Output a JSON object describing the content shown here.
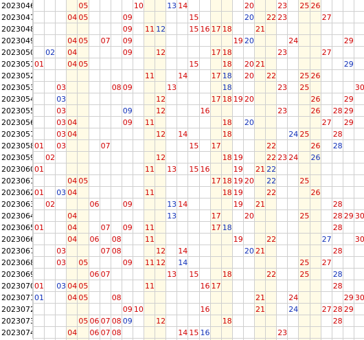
{
  "colors": {
    "red": "#d00000",
    "blue": "#1030b8",
    "band": "#fffbe6",
    "grid": "#cfcfcf"
  },
  "rows": [
    {
      "issue": "2023046",
      "nums": [
        [
          5,
          "r"
        ],
        [
          10,
          "r"
        ],
        [
          13,
          "b"
        ],
        [
          14,
          "r"
        ],
        [
          20,
          "r"
        ],
        [
          23,
          "r"
        ],
        [
          25,
          "r"
        ],
        [
          26,
          "r"
        ]
      ]
    },
    {
      "issue": "2023047",
      "nums": [
        [
          4,
          "r"
        ],
        [
          5,
          "r"
        ],
        [
          9,
          "r"
        ],
        [
          15,
          "r"
        ],
        [
          20,
          "b"
        ],
        [
          22,
          "r"
        ],
        [
          23,
          "r"
        ],
        [
          27,
          "r"
        ]
      ]
    },
    {
      "issue": "2023048",
      "nums": [
        [
          9,
          "r"
        ],
        [
          11,
          "r"
        ],
        [
          12,
          "b"
        ],
        [
          15,
          "r"
        ],
        [
          16,
          "r"
        ],
        [
          17,
          "r"
        ],
        [
          18,
          "r"
        ],
        [
          21,
          "r"
        ]
      ]
    },
    {
      "issue": "2023049",
      "nums": [
        [
          4,
          "r"
        ],
        [
          5,
          "r"
        ],
        [
          7,
          "r"
        ],
        [
          9,
          "r"
        ],
        [
          19,
          "r"
        ],
        [
          20,
          "b"
        ],
        [
          24,
          "r"
        ],
        [
          29,
          "r"
        ]
      ]
    },
    {
      "issue": "2023050",
      "nums": [
        [
          2,
          "b"
        ],
        [
          4,
          "r"
        ],
        [
          9,
          "r"
        ],
        [
          12,
          "r"
        ],
        [
          17,
          "r"
        ],
        [
          18,
          "r"
        ],
        [
          23,
          "r"
        ],
        [
          27,
          "r"
        ]
      ]
    },
    {
      "issue": "2023051",
      "nums": [
        [
          1,
          "r"
        ],
        [
          4,
          "r"
        ],
        [
          5,
          "r"
        ],
        [
          15,
          "r"
        ],
        [
          18,
          "r"
        ],
        [
          20,
          "r"
        ],
        [
          21,
          "r"
        ],
        [
          29,
          "b"
        ]
      ]
    },
    {
      "issue": "2023052",
      "nums": [
        [
          11,
          "r"
        ],
        [
          14,
          "r"
        ],
        [
          17,
          "r"
        ],
        [
          18,
          "b"
        ],
        [
          20,
          "r"
        ],
        [
          22,
          "r"
        ],
        [
          25,
          "r"
        ],
        [
          26,
          "r"
        ]
      ]
    },
    {
      "issue": "2023053",
      "nums": [
        [
          3,
          "r"
        ],
        [
          8,
          "r"
        ],
        [
          9,
          "r"
        ],
        [
          13,
          "r"
        ],
        [
          18,
          "b"
        ],
        [
          23,
          "r"
        ],
        [
          25,
          "r"
        ],
        [
          30,
          "r"
        ]
      ]
    },
    {
      "issue": "2023054",
      "nums": [
        [
          3,
          "b"
        ],
        [
          12,
          "r"
        ],
        [
          17,
          "r"
        ],
        [
          18,
          "r"
        ],
        [
          19,
          "r"
        ],
        [
          20,
          "r"
        ],
        [
          26,
          "r"
        ],
        [
          29,
          "r"
        ]
      ]
    },
    {
      "issue": "2023055",
      "nums": [
        [
          3,
          "r"
        ],
        [
          9,
          "b"
        ],
        [
          12,
          "r"
        ],
        [
          16,
          "r"
        ],
        [
          23,
          "r"
        ],
        [
          26,
          "r"
        ],
        [
          28,
          "r"
        ],
        [
          29,
          "r"
        ]
      ]
    },
    {
      "issue": "2023056",
      "nums": [
        [
          3,
          "r"
        ],
        [
          4,
          "r"
        ],
        [
          9,
          "r"
        ],
        [
          11,
          "r"
        ],
        [
          18,
          "r"
        ],
        [
          20,
          "b"
        ],
        [
          27,
          "r"
        ],
        [
          29,
          "r"
        ]
      ]
    },
    {
      "issue": "2023057",
      "nums": [
        [
          3,
          "r"
        ],
        [
          4,
          "r"
        ],
        [
          12,
          "r"
        ],
        [
          14,
          "r"
        ],
        [
          18,
          "r"
        ],
        [
          24,
          "b"
        ],
        [
          25,
          "r"
        ],
        [
          28,
          "r"
        ]
      ]
    },
    {
      "issue": "2023058",
      "nums": [
        [
          1,
          "r"
        ],
        [
          3,
          "r"
        ],
        [
          7,
          "r"
        ],
        [
          15,
          "r"
        ],
        [
          17,
          "r"
        ],
        [
          22,
          "r"
        ],
        [
          26,
          "r"
        ],
        [
          28,
          "b"
        ]
      ]
    },
    {
      "issue": "2023059",
      "nums": [
        [
          2,
          "r"
        ],
        [
          12,
          "r"
        ],
        [
          18,
          "r"
        ],
        [
          19,
          "r"
        ],
        [
          22,
          "r"
        ],
        [
          23,
          "r"
        ],
        [
          24,
          "r"
        ],
        [
          26,
          "b"
        ]
      ]
    },
    {
      "issue": "2023060",
      "nums": [
        [
          1,
          "r"
        ],
        [
          11,
          "r"
        ],
        [
          13,
          "r"
        ],
        [
          15,
          "r"
        ],
        [
          16,
          "r"
        ],
        [
          19,
          "r"
        ],
        [
          21,
          "r"
        ],
        [
          22,
          "b"
        ]
      ]
    },
    {
      "issue": "2023061",
      "nums": [
        [
          4,
          "r"
        ],
        [
          5,
          "r"
        ],
        [
          17,
          "r"
        ],
        [
          18,
          "r"
        ],
        [
          19,
          "r"
        ],
        [
          20,
          "r"
        ],
        [
          22,
          "b"
        ],
        [
          25,
          "r"
        ]
      ]
    },
    {
      "issue": "2023062",
      "nums": [
        [
          1,
          "r"
        ],
        [
          3,
          "b"
        ],
        [
          4,
          "r"
        ],
        [
          11,
          "r"
        ],
        [
          18,
          "r"
        ],
        [
          19,
          "r"
        ],
        [
          22,
          "r"
        ],
        [
          26,
          "r"
        ]
      ]
    },
    {
      "issue": "2023063",
      "nums": [
        [
          2,
          "r"
        ],
        [
          6,
          "r"
        ],
        [
          9,
          "r"
        ],
        [
          13,
          "b"
        ],
        [
          14,
          "r"
        ],
        [
          19,
          "r"
        ],
        [
          21,
          "r"
        ],
        [
          28,
          "r"
        ]
      ]
    },
    {
      "issue": "2023064",
      "nums": [
        [
          4,
          "r"
        ],
        [
          13,
          "b"
        ],
        [
          17,
          "r"
        ],
        [
          20,
          "r"
        ],
        [
          25,
          "r"
        ],
        [
          28,
          "r"
        ],
        [
          29,
          "r"
        ],
        [
          30,
          "r"
        ]
      ]
    },
    {
      "issue": "2023065",
      "nums": [
        [
          1,
          "r"
        ],
        [
          4,
          "r"
        ],
        [
          7,
          "r"
        ],
        [
          9,
          "r"
        ],
        [
          11,
          "r"
        ],
        [
          17,
          "r"
        ],
        [
          18,
          "b"
        ],
        [
          28,
          "r"
        ]
      ]
    },
    {
      "issue": "2023066",
      "nums": [
        [
          4,
          "r"
        ],
        [
          6,
          "r"
        ],
        [
          8,
          "r"
        ],
        [
          11,
          "r"
        ],
        [
          19,
          "r"
        ],
        [
          22,
          "r"
        ],
        [
          27,
          "b"
        ],
        [
          30,
          "r"
        ]
      ]
    },
    {
      "issue": "2023067",
      "nums": [
        [
          3,
          "r"
        ],
        [
          7,
          "r"
        ],
        [
          8,
          "r"
        ],
        [
          12,
          "r"
        ],
        [
          14,
          "r"
        ],
        [
          20,
          "b"
        ],
        [
          21,
          "r"
        ],
        [
          28,
          "r"
        ]
      ]
    },
    {
      "issue": "2023068",
      "nums": [
        [
          3,
          "r"
        ],
        [
          5,
          "r"
        ],
        [
          9,
          "r"
        ],
        [
          11,
          "r"
        ],
        [
          12,
          "r"
        ],
        [
          14,
          "b"
        ],
        [
          25,
          "r"
        ],
        [
          27,
          "r"
        ]
      ]
    },
    {
      "issue": "2023069",
      "nums": [
        [
          6,
          "r"
        ],
        [
          7,
          "r"
        ],
        [
          13,
          "r"
        ],
        [
          15,
          "r"
        ],
        [
          18,
          "r"
        ],
        [
          22,
          "r"
        ],
        [
          25,
          "r"
        ],
        [
          28,
          "b"
        ]
      ]
    },
    {
      "issue": "2023070",
      "nums": [
        [
          1,
          "r"
        ],
        [
          3,
          "b"
        ],
        [
          4,
          "r"
        ],
        [
          5,
          "r"
        ],
        [
          11,
          "r"
        ],
        [
          16,
          "r"
        ],
        [
          17,
          "r"
        ],
        [
          28,
          "r"
        ]
      ]
    },
    {
      "issue": "2023071",
      "nums": [
        [
          1,
          "b"
        ],
        [
          4,
          "r"
        ],
        [
          5,
          "r"
        ],
        [
          8,
          "r"
        ],
        [
          21,
          "r"
        ],
        [
          24,
          "r"
        ],
        [
          29,
          "r"
        ],
        [
          30,
          "r"
        ]
      ]
    },
    {
      "issue": "2023072",
      "nums": [
        [
          9,
          "r"
        ],
        [
          10,
          "r"
        ],
        [
          16,
          "r"
        ],
        [
          21,
          "r"
        ],
        [
          24,
          "b"
        ],
        [
          27,
          "r"
        ],
        [
          28,
          "r"
        ],
        [
          29,
          "r"
        ]
      ]
    },
    {
      "issue": "2023073",
      "nums": [
        [
          5,
          "r"
        ],
        [
          6,
          "r"
        ],
        [
          7,
          "r"
        ],
        [
          8,
          "r"
        ],
        [
          9,
          "b"
        ],
        [
          12,
          "r"
        ],
        [
          18,
          "r"
        ],
        [
          28,
          "r"
        ]
      ]
    },
    {
      "issue": "2023074",
      "nums": [
        [
          4,
          "r"
        ],
        [
          6,
          "r"
        ],
        [
          7,
          "r"
        ],
        [
          8,
          "r"
        ],
        [
          14,
          "r"
        ],
        [
          15,
          "r"
        ],
        [
          16,
          "b"
        ],
        [
          23,
          "r"
        ]
      ]
    }
  ]
}
